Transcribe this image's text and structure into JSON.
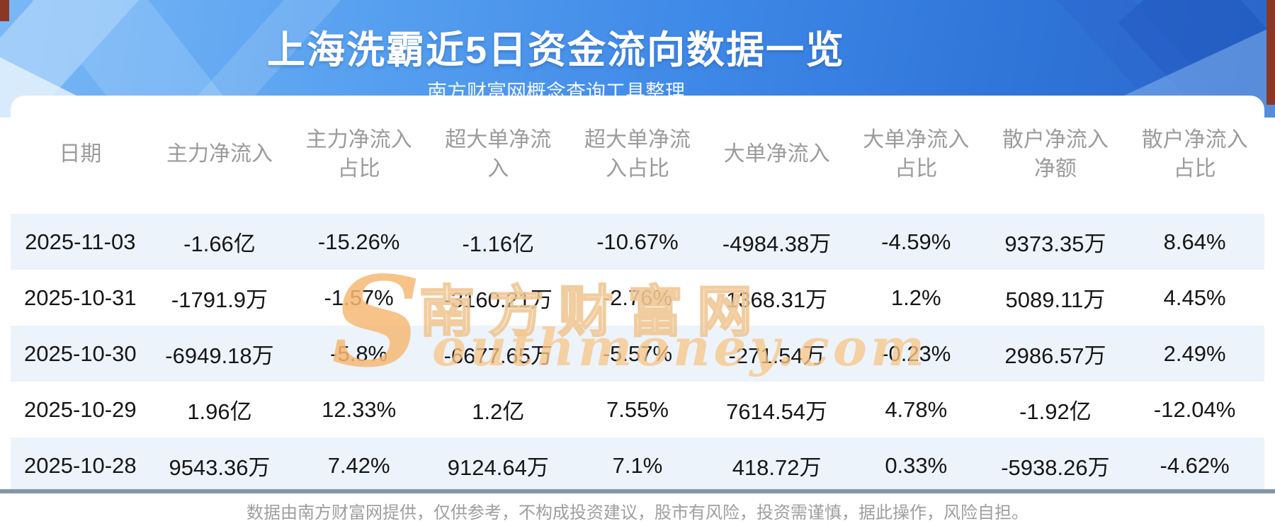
{
  "page": {
    "title": "上海洗霸近5日资金流向数据一览",
    "subtitle": "南方财富网概念查询工具整理",
    "footer_disclaimer": "数据由南方财富网提供，仅供参考，不构成投资建议，股市有风险，投资需谨慎，据此操作，风险自担。"
  },
  "watermark": {
    "cn_text": "南方财富网",
    "script_initial": "S",
    "script_rest": "outhmoney.com"
  },
  "colors": {
    "banner_blue": "#3e88e7",
    "banner_dark_beam": "#2b63c2",
    "accent_red": "#8c3726",
    "row_stripe": "#ecf3fb",
    "header_text": "#9b9b9b",
    "value_text": "#161616",
    "divider": "#8295ac",
    "watermark_orange": "#f6b874"
  },
  "chart_data": {
    "type": "table",
    "title": "上海洗霸近5日资金流向数据一览",
    "source_note": "南方财富网概念查询工具整理",
    "columns": [
      "日期",
      "主力净流入",
      "主力净流入占比",
      "超大单净流入",
      "超大单净流入占比",
      "大单净流入",
      "大单净流入占比",
      "散户净流入净额",
      "散户净流入占比"
    ],
    "columns_display": [
      "日期",
      "主力净流入",
      "主力净流入\n占比",
      "超大单净流\n入",
      "超大单净流\n入占比",
      "大单净流入",
      "大单净流入\n占比",
      "散户净流入\n净额",
      "散户净流入\n占比"
    ],
    "rows": [
      [
        "2025-11-03",
        "-1.66亿",
        "-15.26%",
        "-1.16亿",
        "-10.67%",
        "-4984.38万",
        "-4.59%",
        "9373.35万",
        "8.64%"
      ],
      [
        "2025-10-31",
        "-1791.9万",
        "-1.57%",
        "-3160.21万",
        "-2.76%",
        "1368.31万",
        "1.2%",
        "5089.11万",
        "4.45%"
      ],
      [
        "2025-10-30",
        "-6949.18万",
        "-5.8%",
        "-6677.65万",
        "-5.57%",
        "-271.54万",
        "-0.23%",
        "2986.57万",
        "2.49%"
      ],
      [
        "2025-10-29",
        "1.96亿",
        "12.33%",
        "1.2亿",
        "7.55%",
        "7614.54万",
        "4.78%",
        "-1.92亿",
        "-12.04%"
      ],
      [
        "2025-10-28",
        "9543.36万",
        "7.42%",
        "9124.64万",
        "7.1%",
        "418.72万",
        "0.33%",
        "-5938.26万",
        "-4.62%"
      ]
    ],
    "row_stripe_pattern": "odd rows (1st,3rd,5th) light blue"
  }
}
